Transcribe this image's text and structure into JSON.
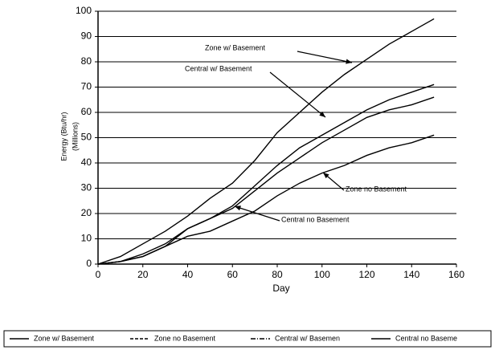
{
  "chart_data": {
    "type": "line",
    "y_label": [
      "Energy (Btu/hr)",
      "(Millions)"
    ],
    "x_label": "Day",
    "x": [
      0,
      10,
      20,
      30,
      40,
      50,
      60,
      70,
      80,
      90,
      100,
      110,
      120,
      130,
      140,
      150
    ],
    "series": [
      {
        "name": "Zone w/ Basement",
        "color": "#000000",
        "values": [
          0,
          3,
          8,
          13,
          19,
          26,
          32,
          41,
          52,
          60,
          68,
          75,
          81,
          87,
          92,
          97
        ]
      },
      {
        "name": "Zone no Basement",
        "color": "#000000",
        "values": [
          0,
          1,
          3,
          7,
          11,
          13,
          17,
          21,
          27,
          32,
          36,
          39,
          43,
          46,
          48,
          51
        ]
      },
      {
        "name": "Central w/ Basemen",
        "color": "#000000",
        "values": [
          0,
          1,
          4,
          8,
          14,
          18,
          23,
          31,
          39,
          46,
          51,
          56,
          61,
          65,
          68,
          71
        ]
      },
      {
        "name": "Central no Baseme",
        "color": "#000000",
        "values": [
          0,
          1,
          3,
          7,
          14,
          18,
          22,
          29,
          36,
          42,
          48,
          53,
          58,
          61,
          63,
          66
        ]
      }
    ],
    "annotations": [
      "Zone w/ Basement",
      "Central w/ Basement",
      "Zone no Basement",
      "Central no Basement"
    ],
    "xlim": [
      0,
      160
    ],
    "xticks": [
      0,
      20,
      40,
      60,
      80,
      100,
      120,
      140,
      160
    ],
    "ylim": [
      0,
      100
    ],
    "yticks": [
      0,
      10,
      20,
      30,
      40,
      50,
      60,
      70,
      80,
      90,
      100
    ],
    "grid": true,
    "legend": "bottom"
  }
}
